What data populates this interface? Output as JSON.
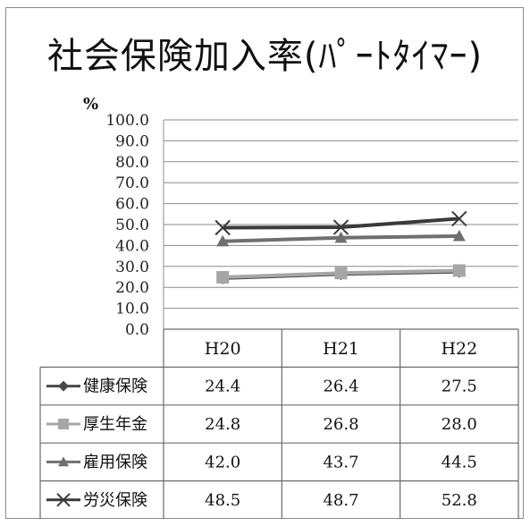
{
  "title": "社会保険加入率(ﾊﾟｰﾄﾀｲﾏｰ)",
  "chart_data": {
    "type": "line",
    "title": "社会保険加入率(ﾊﾟｰﾄﾀｲﾏｰ)",
    "ylabel": "%",
    "ylim": [
      0,
      100
    ],
    "yticks": [
      "0.0",
      "10.0",
      "20.0",
      "30.0",
      "40.0",
      "50.0",
      "60.0",
      "70.0",
      "80.0",
      "90.0",
      "100.0"
    ],
    "categories": [
      "H20",
      "H21",
      "H22"
    ],
    "grid": true,
    "legend": "data-table",
    "series": [
      {
        "name": "健康保険",
        "values": [
          24.4,
          26.4,
          27.5
        ],
        "labels": [
          "24.4",
          "26.4",
          "27.5"
        ],
        "color": "#4a4a4a",
        "marker": "diamond"
      },
      {
        "name": "厚生年金",
        "values": [
          24.8,
          26.8,
          28.0
        ],
        "labels": [
          "24.8",
          "26.8",
          "28.0"
        ],
        "color": "#a6a6a6",
        "marker": "square"
      },
      {
        "name": "雇用保険",
        "values": [
          42.0,
          43.7,
          44.5
        ],
        "labels": [
          "42.0",
          "43.7",
          "44.5"
        ],
        "color": "#6f6f6f",
        "marker": "triangle"
      },
      {
        "name": "労災保険",
        "values": [
          48.5,
          48.7,
          52.8
        ],
        "labels": [
          "48.5",
          "48.7",
          "52.8"
        ],
        "color": "#3a3a3a",
        "marker": "x"
      }
    ]
  }
}
